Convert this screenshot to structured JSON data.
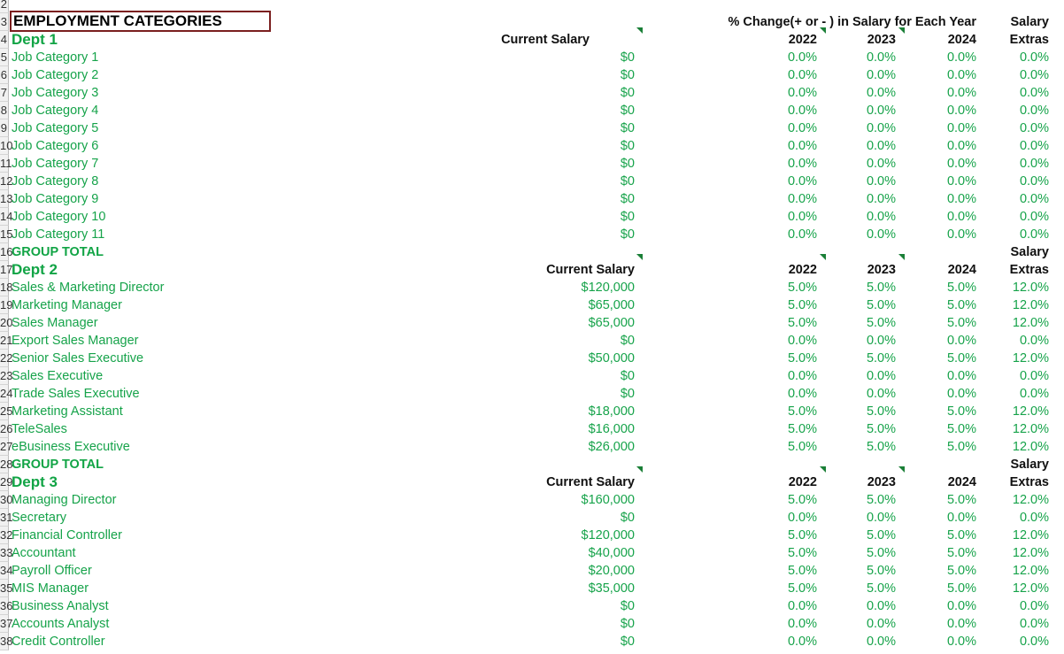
{
  "title": "EMPLOYMENT CATEGORIES",
  "header_change": "% Change(+ or - ) in Salary for Each Year",
  "labels": {
    "current_salary": "Current Salary",
    "salary": "Salary",
    "extras": "Extras",
    "group_total": "GROUP TOTAL",
    "years": [
      "2022",
      "2023",
      "2024"
    ]
  },
  "row_numbers": [
    "2",
    "3",
    "4",
    "5",
    "6",
    "7",
    "8",
    "9",
    "10",
    "11",
    "12",
    "13",
    "14",
    "15",
    "16",
    "17",
    "18",
    "19",
    "20",
    "21",
    "22",
    "23",
    "24",
    "25",
    "26",
    "27",
    "28",
    "29",
    "30",
    "31",
    "32",
    "33",
    "34",
    "35",
    "36",
    "37",
    "38"
  ],
  "depts": [
    {
      "name": "Dept 1",
      "rows": [
        {
          "name": "Job Category 1",
          "salary": "$0",
          "y2022": "0.0%",
          "y2023": "0.0%",
          "y2024": "0.0%",
          "extras": "0.0%"
        },
        {
          "name": "Job Category 2",
          "salary": "$0",
          "y2022": "0.0%",
          "y2023": "0.0%",
          "y2024": "0.0%",
          "extras": "0.0%"
        },
        {
          "name": "Job Category 3",
          "salary": "$0",
          "y2022": "0.0%",
          "y2023": "0.0%",
          "y2024": "0.0%",
          "extras": "0.0%"
        },
        {
          "name": "Job Category 4",
          "salary": "$0",
          "y2022": "0.0%",
          "y2023": "0.0%",
          "y2024": "0.0%",
          "extras": "0.0%"
        },
        {
          "name": "Job Category 5",
          "salary": "$0",
          "y2022": "0.0%",
          "y2023": "0.0%",
          "y2024": "0.0%",
          "extras": "0.0%"
        },
        {
          "name": "Job Category 6",
          "salary": "$0",
          "y2022": "0.0%",
          "y2023": "0.0%",
          "y2024": "0.0%",
          "extras": "0.0%"
        },
        {
          "name": "Job Category 7",
          "salary": "$0",
          "y2022": "0.0%",
          "y2023": "0.0%",
          "y2024": "0.0%",
          "extras": "0.0%"
        },
        {
          "name": "Job Category 8",
          "salary": "$0",
          "y2022": "0.0%",
          "y2023": "0.0%",
          "y2024": "0.0%",
          "extras": "0.0%"
        },
        {
          "name": "Job Category 9",
          "salary": "$0",
          "y2022": "0.0%",
          "y2023": "0.0%",
          "y2024": "0.0%",
          "extras": "0.0%"
        },
        {
          "name": "Job Category 10",
          "salary": "$0",
          "y2022": "0.0%",
          "y2023": "0.0%",
          "y2024": "0.0%",
          "extras": "0.0%"
        },
        {
          "name": "Job Category 11",
          "salary": "$0",
          "y2022": "0.0%",
          "y2023": "0.0%",
          "y2024": "0.0%",
          "extras": "0.0%"
        }
      ]
    },
    {
      "name": "Dept 2",
      "rows": [
        {
          "name": "Sales & Marketing Director",
          "salary": "$120,000",
          "y2022": "5.0%",
          "y2023": "5.0%",
          "y2024": "5.0%",
          "extras": "12.0%"
        },
        {
          "name": "Marketing Manager",
          "salary": "$65,000",
          "y2022": "5.0%",
          "y2023": "5.0%",
          "y2024": "5.0%",
          "extras": "12.0%"
        },
        {
          "name": "Sales Manager",
          "salary": "$65,000",
          "y2022": "5.0%",
          "y2023": "5.0%",
          "y2024": "5.0%",
          "extras": "12.0%"
        },
        {
          "name": "Export Sales Manager",
          "salary": "$0",
          "y2022": "0.0%",
          "y2023": "0.0%",
          "y2024": "0.0%",
          "extras": "0.0%"
        },
        {
          "name": "Senior Sales Executive",
          "salary": "$50,000",
          "y2022": "5.0%",
          "y2023": "5.0%",
          "y2024": "5.0%",
          "extras": "12.0%"
        },
        {
          "name": "Sales Executive",
          "salary": "$0",
          "y2022": "0.0%",
          "y2023": "0.0%",
          "y2024": "0.0%",
          "extras": "0.0%"
        },
        {
          "name": "Trade Sales Executive",
          "salary": "$0",
          "y2022": "0.0%",
          "y2023": "0.0%",
          "y2024": "0.0%",
          "extras": "0.0%"
        },
        {
          "name": "Marketing Assistant",
          "salary": "$18,000",
          "y2022": "5.0%",
          "y2023": "5.0%",
          "y2024": "5.0%",
          "extras": "12.0%"
        },
        {
          "name": "TeleSales",
          "salary": "$16,000",
          "y2022": "5.0%",
          "y2023": "5.0%",
          "y2024": "5.0%",
          "extras": "12.0%"
        },
        {
          "name": "eBusiness Executive",
          "salary": "$26,000",
          "y2022": "5.0%",
          "y2023": "5.0%",
          "y2024": "5.0%",
          "extras": "12.0%"
        }
      ]
    },
    {
      "name": "Dept 3",
      "rows": [
        {
          "name": "Managing Director",
          "salary": "$160,000",
          "y2022": "5.0%",
          "y2023": "5.0%",
          "y2024": "5.0%",
          "extras": "12.0%"
        },
        {
          "name": "Secretary",
          "salary": "$0",
          "y2022": "0.0%",
          "y2023": "0.0%",
          "y2024": "0.0%",
          "extras": "0.0%"
        },
        {
          "name": "Financial Controller",
          "salary": "$120,000",
          "y2022": "5.0%",
          "y2023": "5.0%",
          "y2024": "5.0%",
          "extras": "12.0%"
        },
        {
          "name": "Accountant",
          "salary": "$40,000",
          "y2022": "5.0%",
          "y2023": "5.0%",
          "y2024": "5.0%",
          "extras": "12.0%"
        },
        {
          "name": "Payroll Officer",
          "salary": "$20,000",
          "y2022": "5.0%",
          "y2023": "5.0%",
          "y2024": "5.0%",
          "extras": "12.0%"
        },
        {
          "name": "MIS Manager",
          "salary": "$35,000",
          "y2022": "5.0%",
          "y2023": "5.0%",
          "y2024": "5.0%",
          "extras": "12.0%"
        },
        {
          "name": "Business Analyst",
          "salary": "$0",
          "y2022": "0.0%",
          "y2023": "0.0%",
          "y2024": "0.0%",
          "extras": "0.0%"
        },
        {
          "name": "Accounts Analyst",
          "salary": "$0",
          "y2022": "0.0%",
          "y2023": "0.0%",
          "y2024": "0.0%",
          "extras": "0.0%"
        },
        {
          "name": "Credit Controller",
          "salary": "$0",
          "y2022": "0.0%",
          "y2023": "0.0%",
          "y2024": "0.0%",
          "extras": "0.0%"
        }
      ]
    }
  ]
}
